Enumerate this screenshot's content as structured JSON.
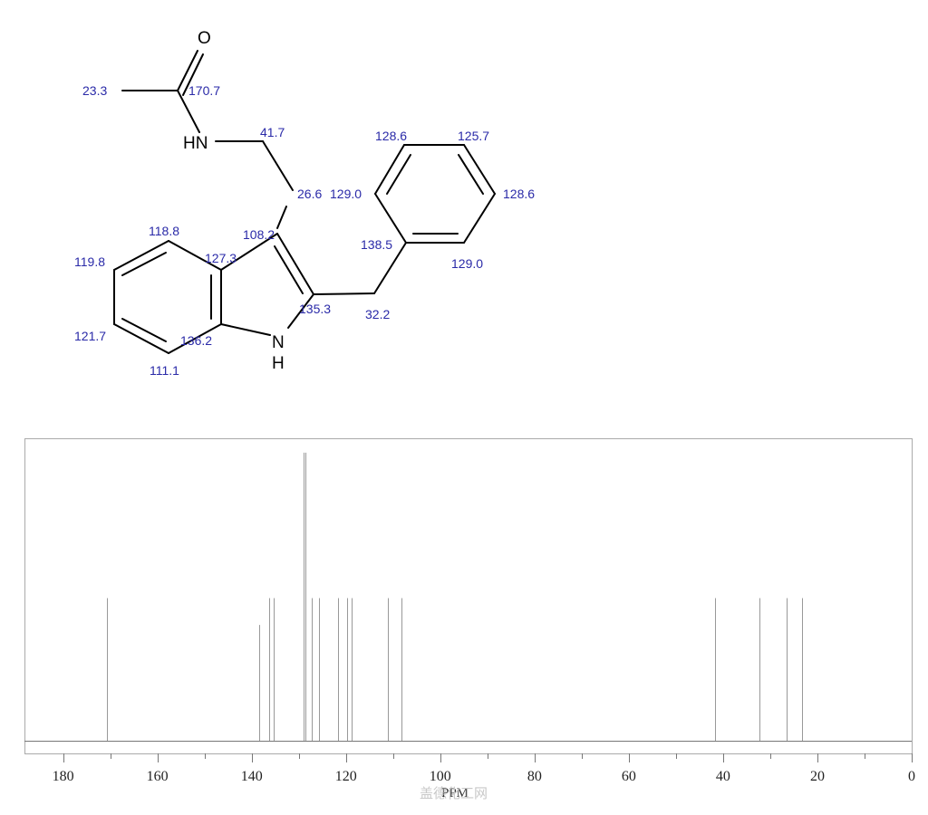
{
  "molecule": {
    "atoms": {
      "oxygen": "O",
      "amide_nh": "HN",
      "indole_n": "N",
      "indole_h": "H"
    },
    "shift_labels": {
      "ch3": "23.3",
      "carbonyl": "170.7",
      "ch2_n": "41.7",
      "ch2_c3": "26.6",
      "ph_ortho_top": "129.0",
      "ph_meta_top": "128.6",
      "ph_para": "125.7",
      "ph_meta_right": "128.6",
      "ph_ortho_bottom": "129.0",
      "ph_ipso": "138.5",
      "benzyl_ch2": "32.2",
      "c3": "108.2",
      "c4": "118.8",
      "c3a": "127.3",
      "c5": "119.8",
      "c2": "135.3",
      "c6": "121.7",
      "c7a": "136.2",
      "c7": "111.1"
    }
  },
  "chart_data": {
    "type": "bar",
    "subtype": "nmr-stick-spectrum",
    "xlabel": "PPM",
    "xlim": [
      188,
      0
    ],
    "x_reversed": true,
    "xticks": [
      180,
      160,
      140,
      120,
      100,
      80,
      60,
      40,
      20,
      0
    ],
    "grid": false,
    "peaks": [
      {
        "ppm": 170.7,
        "intensity": 0.48
      },
      {
        "ppm": 138.5,
        "intensity": 0.39
      },
      {
        "ppm": 136.2,
        "intensity": 0.48
      },
      {
        "ppm": 135.3,
        "intensity": 0.48
      },
      {
        "ppm": 129.0,
        "intensity": 0.97
      },
      {
        "ppm": 128.6,
        "intensity": 0.97
      },
      {
        "ppm": 127.3,
        "intensity": 0.48
      },
      {
        "ppm": 125.7,
        "intensity": 0.48
      },
      {
        "ppm": 121.7,
        "intensity": 0.48
      },
      {
        "ppm": 119.8,
        "intensity": 0.48
      },
      {
        "ppm": 118.8,
        "intensity": 0.48
      },
      {
        "ppm": 111.1,
        "intensity": 0.48
      },
      {
        "ppm": 108.2,
        "intensity": 0.48
      },
      {
        "ppm": 41.7,
        "intensity": 0.48
      },
      {
        "ppm": 32.2,
        "intensity": 0.48
      },
      {
        "ppm": 26.6,
        "intensity": 0.48
      },
      {
        "ppm": 23.3,
        "intensity": 0.48
      }
    ]
  },
  "watermark": "盖德化工网"
}
